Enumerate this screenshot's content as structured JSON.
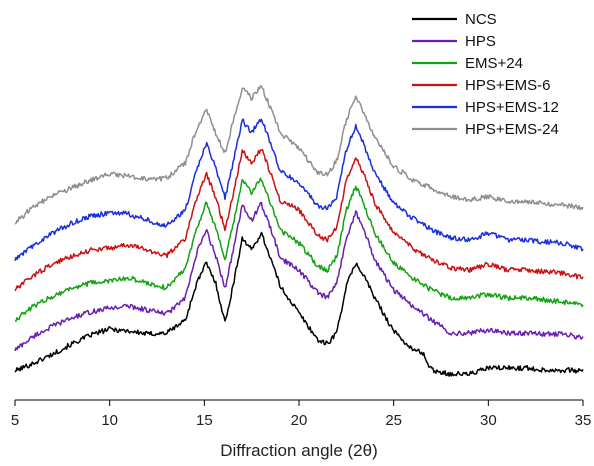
{
  "chart_data": {
    "type": "line",
    "xlabel": "Diffraction angle (2θ)",
    "ylabel": "",
    "xlim": [
      5,
      35
    ],
    "x_ticks": [
      "5",
      "10",
      "15",
      "20",
      "25",
      "30",
      "35"
    ],
    "grid": false,
    "legend_position": "top-right",
    "series": [
      {
        "name": "NCS",
        "color": "#000000",
        "points": [
          [
            5,
            7.0
          ],
          [
            6,
            15
          ],
          [
            7,
            24
          ],
          [
            8,
            34
          ],
          [
            9,
            43
          ],
          [
            10,
            49
          ],
          [
            11,
            47
          ],
          [
            12,
            44
          ],
          [
            13,
            45
          ],
          [
            14,
            58
          ],
          [
            14.6,
            95
          ],
          [
            15.1,
            115
          ],
          [
            15.6,
            95
          ],
          [
            16.1,
            55
          ],
          [
            16.6,
            100
          ],
          [
            17.0,
            140
          ],
          [
            17.5,
            128
          ],
          [
            18.0,
            145
          ],
          [
            18.5,
            120
          ],
          [
            19.0,
            92
          ],
          [
            20,
            65
          ],
          [
            21,
            38
          ],
          [
            21.5,
            34
          ],
          [
            22,
            46
          ],
          [
            22.5,
            92
          ],
          [
            23.0,
            115
          ],
          [
            23.5,
            100
          ],
          [
            24,
            80
          ],
          [
            25,
            47
          ],
          [
            26,
            28
          ],
          [
            26.5,
            26
          ],
          [
            27,
            8
          ],
          [
            28,
            4
          ],
          [
            29,
            4
          ],
          [
            30,
            10
          ],
          [
            31,
            10
          ],
          [
            32,
            10
          ],
          [
            33,
            8
          ],
          [
            34,
            8
          ],
          [
            35,
            7
          ]
        ]
      },
      {
        "name": "HPS",
        "color": "#6a1fb0",
        "points": [
          [
            5,
            28
          ],
          [
            6,
            42
          ],
          [
            7,
            52
          ],
          [
            8,
            60
          ],
          [
            9,
            66
          ],
          [
            10,
            70
          ],
          [
            11,
            72
          ],
          [
            12,
            68
          ],
          [
            13,
            64
          ],
          [
            14,
            80
          ],
          [
            14.6,
            125
          ],
          [
            15.1,
            148
          ],
          [
            15.6,
            122
          ],
          [
            16.1,
            90
          ],
          [
            16.6,
            135
          ],
          [
            17.0,
            172
          ],
          [
            17.5,
            158
          ],
          [
            18.0,
            174
          ],
          [
            18.5,
            150
          ],
          [
            19.0,
            120
          ],
          [
            20,
            108
          ],
          [
            21,
            85
          ],
          [
            21.5,
            80
          ],
          [
            22,
            95
          ],
          [
            22.5,
            140
          ],
          [
            23.0,
            166
          ],
          [
            23.5,
            145
          ],
          [
            24,
            118
          ],
          [
            25,
            88
          ],
          [
            26,
            72
          ],
          [
            27,
            58
          ],
          [
            28,
            45
          ],
          [
            29,
            45
          ],
          [
            30,
            48
          ],
          [
            31,
            45
          ],
          [
            32,
            45
          ],
          [
            33,
            44
          ],
          [
            34,
            44
          ],
          [
            35,
            40
          ]
        ]
      },
      {
        "name": "EMS+24",
        "color": "#12a312",
        "points": [
          [
            5,
            58
          ],
          [
            6,
            72
          ],
          [
            7,
            82
          ],
          [
            8,
            90
          ],
          [
            9,
            95
          ],
          [
            10,
            97
          ],
          [
            11,
            100
          ],
          [
            12,
            95
          ],
          [
            13,
            90
          ],
          [
            14,
            110
          ],
          [
            14.6,
            150
          ],
          [
            15.1,
            175
          ],
          [
            15.6,
            150
          ],
          [
            16.1,
            118
          ],
          [
            16.6,
            160
          ],
          [
            17.0,
            198
          ],
          [
            17.5,
            185
          ],
          [
            18.0,
            200
          ],
          [
            18.5,
            175
          ],
          [
            19.0,
            148
          ],
          [
            20,
            135
          ],
          [
            21,
            112
          ],
          [
            21.5,
            108
          ],
          [
            22,
            122
          ],
          [
            22.5,
            168
          ],
          [
            23.0,
            192
          ],
          [
            23.5,
            170
          ],
          [
            24,
            145
          ],
          [
            25,
            115
          ],
          [
            26,
            100
          ],
          [
            27,
            88
          ],
          [
            28,
            80
          ],
          [
            29,
            80
          ],
          [
            30,
            84
          ],
          [
            31,
            80
          ],
          [
            32,
            80
          ],
          [
            33,
            78
          ],
          [
            34,
            76
          ],
          [
            35,
            72
          ]
        ]
      },
      {
        "name": "HPS+EMS-6",
        "color": "#cc1111",
        "points": [
          [
            5,
            88
          ],
          [
            6,
            103
          ],
          [
            7,
            114
          ],
          [
            8,
            122
          ],
          [
            9,
            128
          ],
          [
            10,
            130
          ],
          [
            11,
            133
          ],
          [
            12,
            128
          ],
          [
            13,
            122
          ],
          [
            14,
            140
          ],
          [
            14.6,
            180
          ],
          [
            15.1,
            205
          ],
          [
            15.6,
            180
          ],
          [
            16.1,
            148
          ],
          [
            16.6,
            190
          ],
          [
            17.0,
            228
          ],
          [
            17.5,
            214
          ],
          [
            18.0,
            230
          ],
          [
            18.5,
            205
          ],
          [
            19.0,
            178
          ],
          [
            20,
            168
          ],
          [
            21,
            142
          ],
          [
            21.5,
            138
          ],
          [
            22,
            152
          ],
          [
            22.5,
            198
          ],
          [
            23.0,
            222
          ],
          [
            23.5,
            200
          ],
          [
            24,
            175
          ],
          [
            25,
            145
          ],
          [
            26,
            130
          ],
          [
            27,
            118
          ],
          [
            28,
            110
          ],
          [
            29,
            108
          ],
          [
            30,
            114
          ],
          [
            31,
            108
          ],
          [
            32,
            108
          ],
          [
            33,
            106
          ],
          [
            34,
            105
          ],
          [
            35,
            100
          ]
        ]
      },
      {
        "name": "HPS+EMS-12",
        "color": "#1a2ee0",
        "points": [
          [
            5,
            118
          ],
          [
            6,
            133
          ],
          [
            7,
            145
          ],
          [
            8,
            155
          ],
          [
            9,
            162
          ],
          [
            10,
            165
          ],
          [
            11,
            164
          ],
          [
            12,
            158
          ],
          [
            13,
            152
          ],
          [
            14,
            168
          ],
          [
            14.6,
            208
          ],
          [
            15.1,
            235
          ],
          [
            15.6,
            210
          ],
          [
            16.1,
            180
          ],
          [
            16.6,
            222
          ],
          [
            17.0,
            258
          ],
          [
            17.5,
            245
          ],
          [
            18.0,
            260
          ],
          [
            18.5,
            235
          ],
          [
            19.0,
            208
          ],
          [
            20,
            195
          ],
          [
            21,
            172
          ],
          [
            21.5,
            170
          ],
          [
            22,
            182
          ],
          [
            22.5,
            228
          ],
          [
            23.0,
            252
          ],
          [
            23.5,
            230
          ],
          [
            24,
            205
          ],
          [
            25,
            175
          ],
          [
            26,
            160
          ],
          [
            27,
            148
          ],
          [
            28,
            140
          ],
          [
            29,
            138
          ],
          [
            30,
            145
          ],
          [
            31,
            138
          ],
          [
            32,
            138
          ],
          [
            33,
            136
          ],
          [
            34,
            135
          ],
          [
            35,
            128
          ]
        ]
      },
      {
        "name": "HPS+EMS-24",
        "color": "#8f8f8f",
        "points": [
          [
            5,
            155
          ],
          [
            6,
            172
          ],
          [
            7,
            182
          ],
          [
            8,
            190
          ],
          [
            9,
            198
          ],
          [
            10,
            204
          ],
          [
            11,
            202
          ],
          [
            12,
            198
          ],
          [
            13,
            200
          ],
          [
            14,
            215
          ],
          [
            14.6,
            250
          ],
          [
            15.1,
            268
          ],
          [
            15.6,
            245
          ],
          [
            16.1,
            225
          ],
          [
            16.6,
            262
          ],
          [
            17.0,
            290
          ],
          [
            17.5,
            280
          ],
          [
            18.0,
            292
          ],
          [
            18.5,
            270
          ],
          [
            19.0,
            245
          ],
          [
            20,
            230
          ],
          [
            21,
            205
          ],
          [
            21.5,
            203
          ],
          [
            22,
            218
          ],
          [
            22.5,
            258
          ],
          [
            23.0,
            282
          ],
          [
            23.5,
            262
          ],
          [
            24,
            240
          ],
          [
            25,
            212
          ],
          [
            26,
            198
          ],
          [
            27,
            190
          ],
          [
            28,
            182
          ],
          [
            29,
            178
          ],
          [
            30,
            182
          ],
          [
            31,
            176
          ],
          [
            32,
            176
          ],
          [
            33,
            174
          ],
          [
            34,
            173
          ],
          [
            35,
            170
          ]
        ]
      }
    ]
  }
}
